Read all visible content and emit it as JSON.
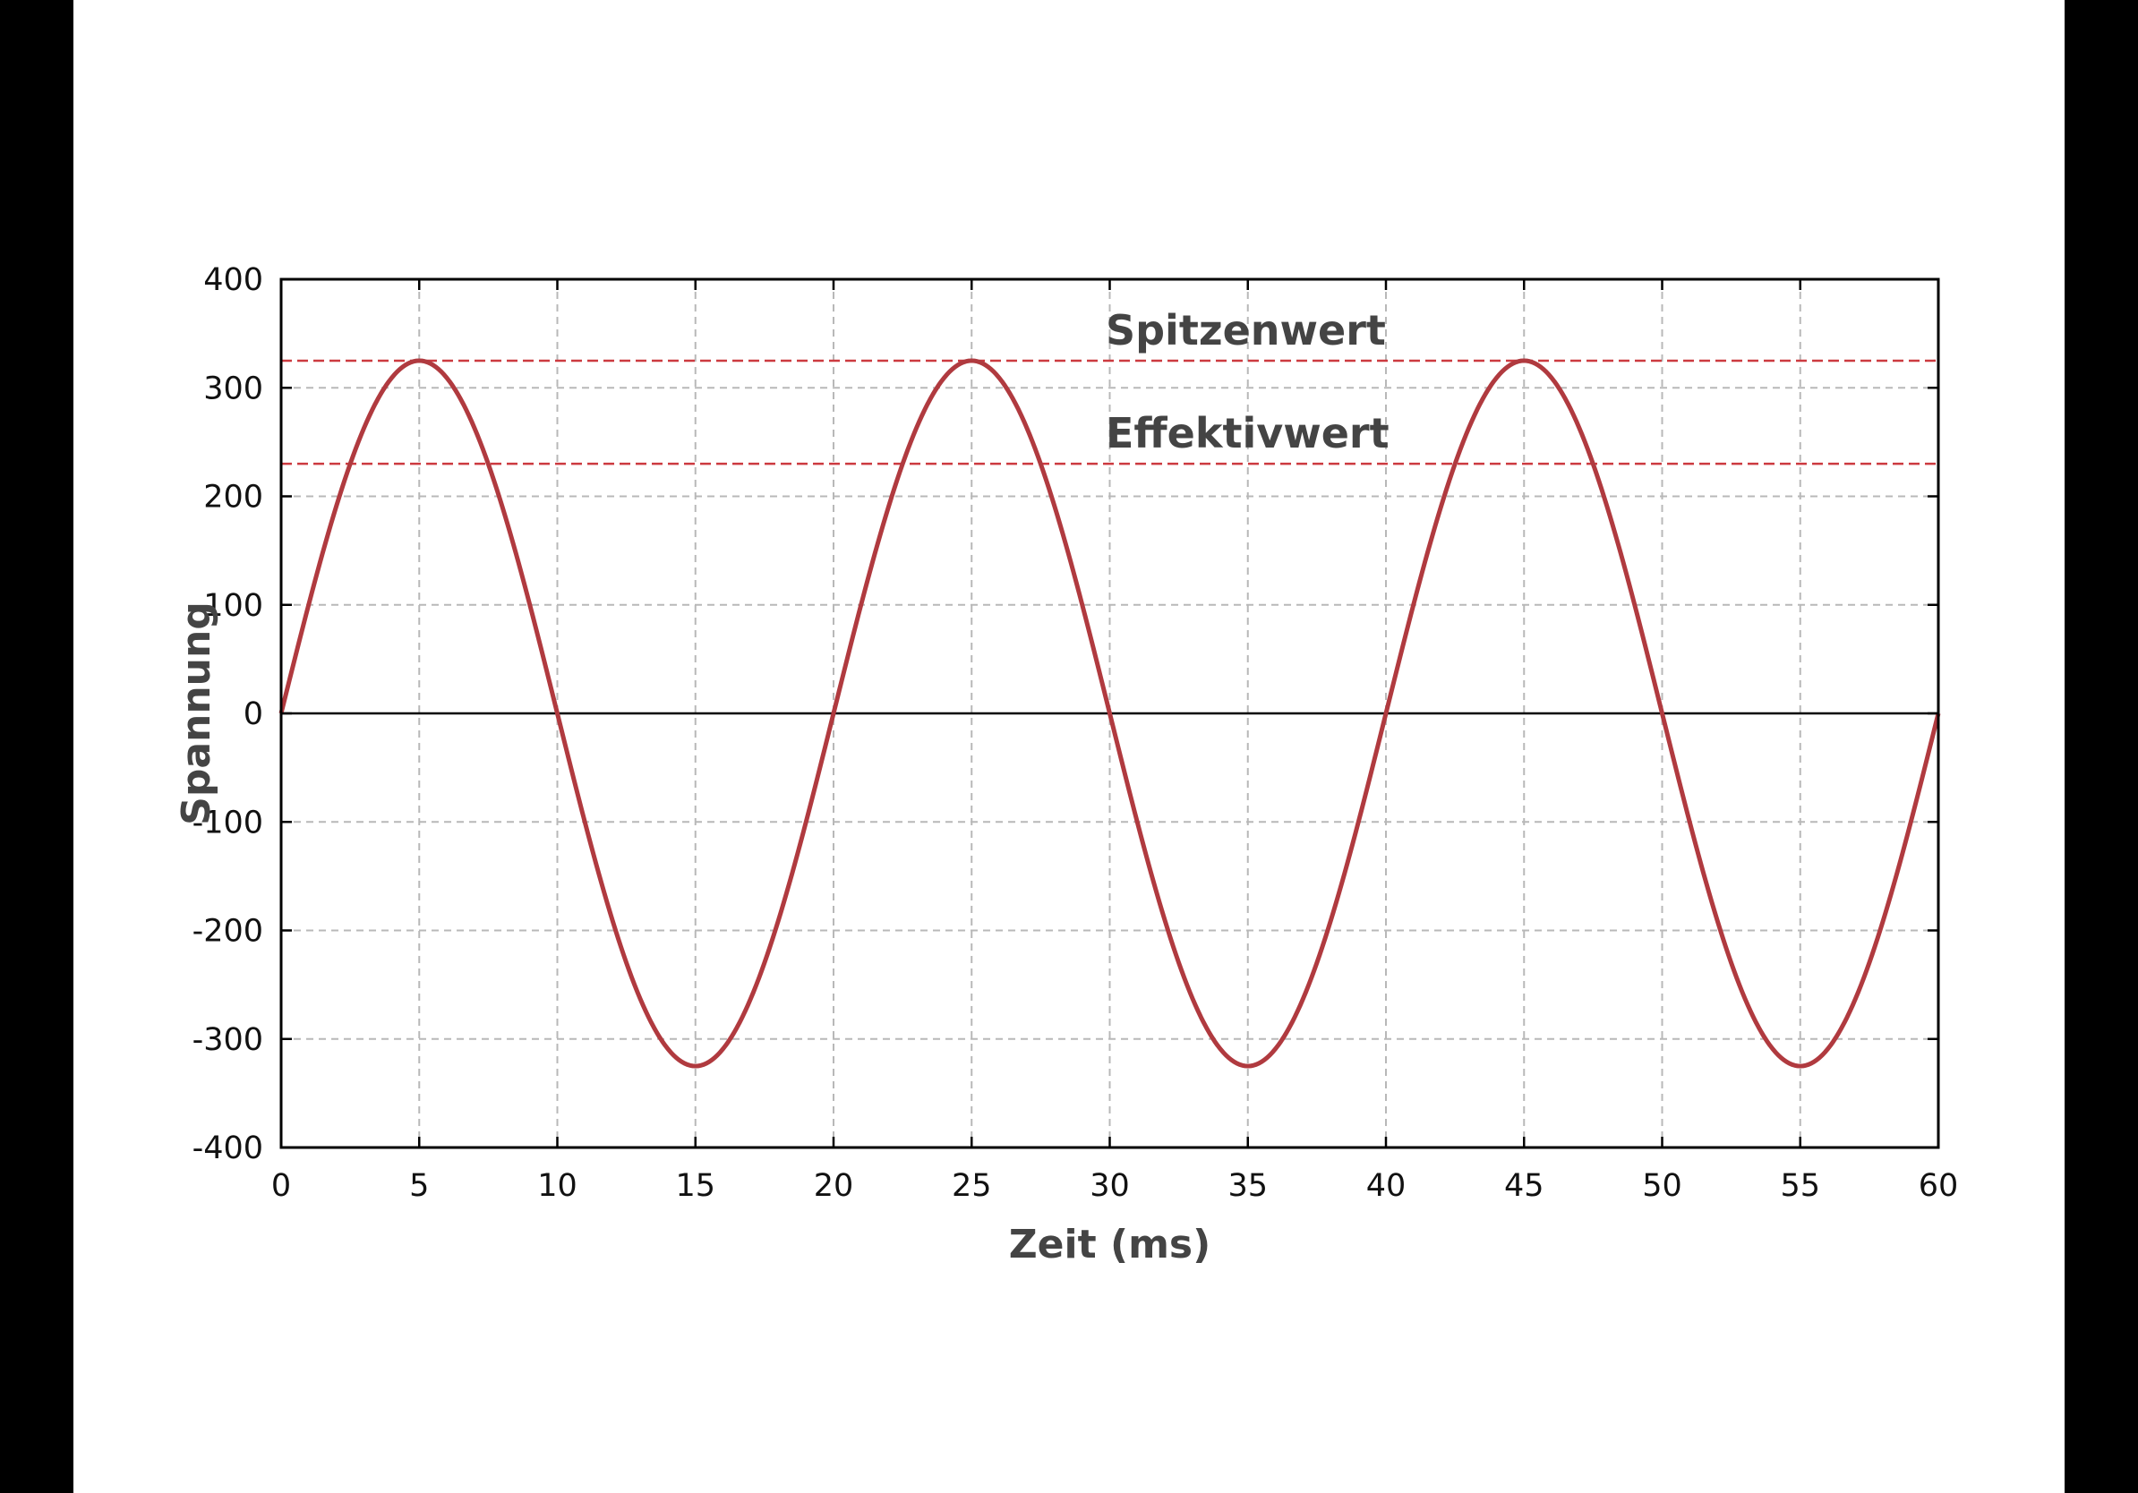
{
  "chart_data": {
    "type": "line",
    "title": "",
    "xlabel": "Zeit (ms)",
    "ylabel": "Spannung",
    "xlim": [
      0,
      60
    ],
    "ylim": [
      -400,
      400
    ],
    "xticks": [
      0,
      5,
      10,
      15,
      20,
      25,
      30,
      35,
      40,
      45,
      50,
      55,
      60
    ],
    "yticks": [
      -400,
      -300,
      -200,
      -100,
      0,
      100,
      200,
      300,
      400
    ],
    "grid": true,
    "legend": "none",
    "series": [
      {
        "color": "#b03a3f",
        "x": [
          0,
          1.25,
          2.5,
          3.75,
          5,
          6.25,
          7.5,
          8.75,
          10,
          11.25,
          12.5,
          13.75,
          15,
          16.25,
          17.5,
          18.75,
          20,
          21.25,
          22.5,
          23.75,
          25,
          26.25,
          27.5,
          28.75,
          30,
          31.25,
          32.5,
          33.75,
          35,
          36.25,
          37.5,
          38.75,
          40,
          41.25,
          42.5,
          43.75,
          45,
          46.25,
          47.5,
          48.75,
          50,
          51.25,
          52.5,
          53.75,
          55,
          56.25,
          57.5,
          58.75,
          60
        ],
        "y": [
          0,
          124,
          230,
          300,
          325,
          300,
          230,
          124,
          0,
          -124,
          -230,
          -300,
          -325,
          -300,
          -230,
          -124,
          0,
          124,
          230,
          300,
          325,
          300,
          230,
          124,
          0,
          -124,
          -230,
          -300,
          -325,
          -300,
          -230,
          -124,
          0,
          124,
          230,
          300,
          325,
          300,
          230,
          124,
          0,
          -124,
          -230,
          -300,
          -325,
          -300,
          -230,
          -124,
          0
        ]
      }
    ],
    "reference_lines": [
      {
        "label": "Spitzenwert",
        "y": 325,
        "color": "#cc3a40"
      },
      {
        "label": "Effektivwert",
        "y": 230,
        "color": "#cc3a40"
      }
    ],
    "zero_line_color": "#000000"
  }
}
